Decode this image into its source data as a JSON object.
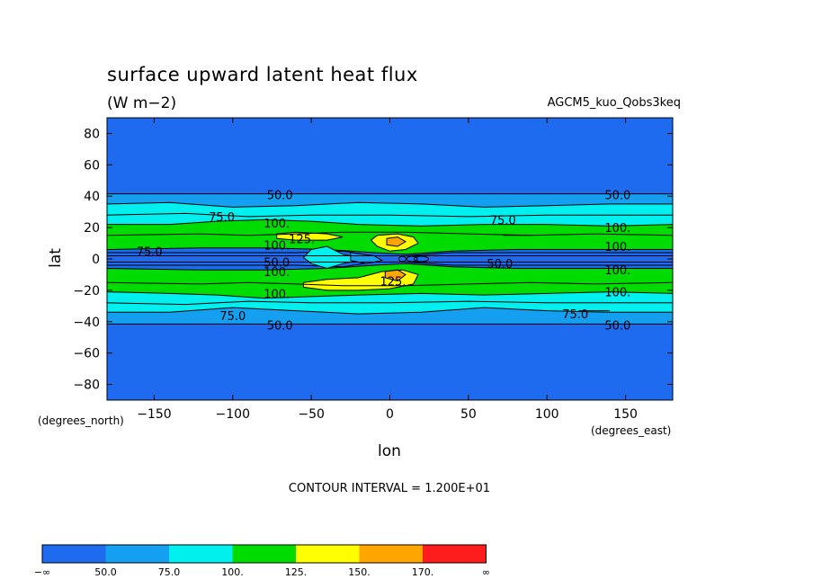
{
  "chart_data": {
    "type": "contour",
    "title": "surface upward latent heat flux",
    "units": "(W m−2)",
    "experiment": "AGCM5_kuo_Qobs3keq",
    "xlabel": "lon",
    "ylabel": "lat",
    "x_units": "(degrees_east)",
    "y_units": "(degrees_north)",
    "xlim": [
      -180,
      180
    ],
    "ylim": [
      -90,
      90
    ],
    "x_ticks": [
      -150,
      -100,
      -50,
      0,
      50,
      100,
      150
    ],
    "y_ticks": [
      80,
      60,
      40,
      20,
      0,
      -20,
      -40,
      -60,
      -80
    ],
    "contour_interval_text": "CONTOUR INTERVAL = 1.200E+01",
    "colorbar": {
      "labels": [
        "−∞",
        "50.0",
        "75.0",
        "100.",
        "125.",
        "150.",
        "170.",
        "∞"
      ],
      "colors": [
        "#1f6bf0",
        "#149ff0",
        "#00f0f0",
        "#00dc00",
        "#ffff00",
        "#ffa500",
        "#ff1c1c"
      ]
    },
    "colors": {
      "lt50": "#1f6bf0",
      "b50_75": "#149ff0",
      "b75_100": "#00f0f0",
      "b100_125": "#00dc00",
      "b125_150": "#ffff00",
      "b150_170": "#ffa500"
    },
    "contour_labels": [
      {
        "text": "50.0",
        "lon": -70,
        "lat": 41
      },
      {
        "text": "50.0",
        "lon": 145,
        "lat": 41
      },
      {
        "text": "75.0",
        "lon": -107,
        "lat": 27
      },
      {
        "text": "75.0",
        "lon": 72,
        "lat": 25
      },
      {
        "text": "100.",
        "lon": -72,
        "lat": 23
      },
      {
        "text": "100.",
        "lon": 145,
        "lat": 20
      },
      {
        "text": "125.",
        "lon": -56,
        "lat": 13
      },
      {
        "text": "100.",
        "lon": -72,
        "lat": 9
      },
      {
        "text": "100.",
        "lon": 145,
        "lat": 8
      },
      {
        "text": "75.0",
        "lon": -153,
        "lat": 5
      },
      {
        "text": "50.0",
        "lon": -72,
        "lat": -2
      },
      {
        "text": "50.0",
        "lon": 70,
        "lat": -3
      },
      {
        "text": "100.",
        "lon": -72,
        "lat": -8
      },
      {
        "text": "100.",
        "lon": 145,
        "lat": -7
      },
      {
        "text": "125.",
        "lon": 2,
        "lat": -14
      },
      {
        "text": "100.",
        "lon": -72,
        "lat": -22
      },
      {
        "text": "100.",
        "lon": 145,
        "lat": -21
      },
      {
        "text": "75.0",
        "lon": -100,
        "lat": -36
      },
      {
        "text": "75.0",
        "lon": 118,
        "lat": -35
      },
      {
        "text": "50.0",
        "lon": -70,
        "lat": -42
      },
      {
        "text": "50.0",
        "lon": 145,
        "lat": -42
      }
    ]
  }
}
